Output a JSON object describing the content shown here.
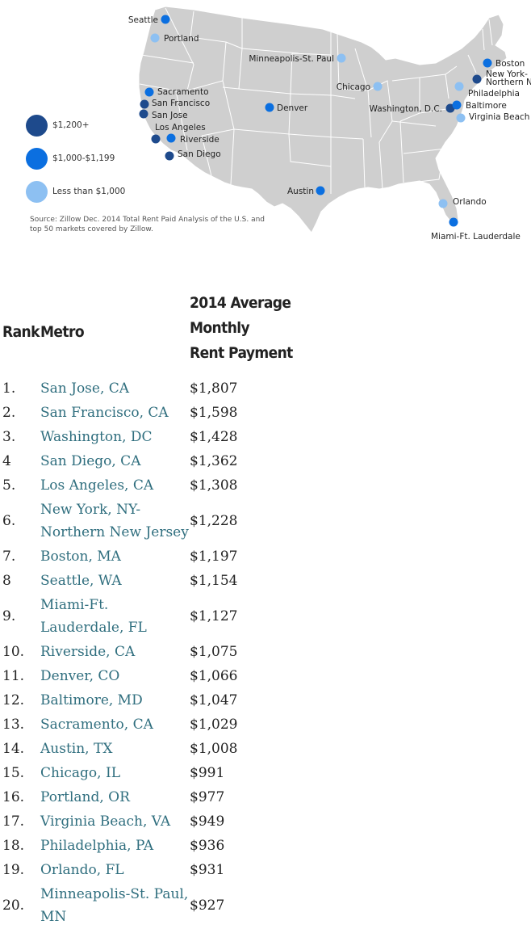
{
  "map": {
    "cities": [
      {
        "name": "Seattle",
        "tier": "mid"
      },
      {
        "name": "Portland",
        "tier": "low"
      },
      {
        "name": "Sacramento",
        "tier": "mid"
      },
      {
        "name": "San Francisco",
        "tier": "high"
      },
      {
        "name": "San Jose",
        "tier": "high"
      },
      {
        "name": "Los Angeles",
        "tier": "high"
      },
      {
        "name": "Riverside",
        "tier": "mid"
      },
      {
        "name": "San Diego",
        "tier": "high"
      },
      {
        "name": "Minneapolis-St. Paul",
        "tier": "low"
      },
      {
        "name": "Denver",
        "tier": "mid"
      },
      {
        "name": "Austin",
        "tier": "mid"
      },
      {
        "name": "Chicago",
        "tier": "low"
      },
      {
        "name": "Boston",
        "tier": "mid"
      },
      {
        "name": "New York-\nNorthern N",
        "tier": "high"
      },
      {
        "name": "Philadelphia",
        "tier": "low"
      },
      {
        "name": "Washington, D.C.",
        "tier": "high"
      },
      {
        "name": "Baltimore",
        "tier": "mid"
      },
      {
        "name": "Virginia Beach",
        "tier": "low"
      },
      {
        "name": "Orlando",
        "tier": "low"
      },
      {
        "name": "Miami-Ft. Lauderdale",
        "tier": "mid"
      }
    ],
    "colors": {
      "high": "#1e4a8c",
      "mid": "#0b6fe0",
      "low": "#8dc0f2",
      "land": "#cfcfcf",
      "border": "#ffffff"
    },
    "legend": [
      {
        "label": "$1,200+",
        "tier": "high"
      },
      {
        "label": "$1,000-$1,199",
        "tier": "mid"
      },
      {
        "label": "Less than $1,000",
        "tier": "low"
      }
    ],
    "source": "Source: Zillow Dec. 2014 Total Rent Paid Analysis of the U.S. and top 50 markets covered by Zillow."
  },
  "table": {
    "headers": {
      "rank": "Rank",
      "metro": "Metro",
      "payment_lines": [
        "2014 Average",
        "Monthly",
        "Rent Payment"
      ]
    },
    "rows": [
      {
        "rank": "1.",
        "metro": "San Jose, CA",
        "payment": "$1,807"
      },
      {
        "rank": "2.",
        "metro": "San Francisco, CA",
        "payment": "$1,598"
      },
      {
        "rank": "3.",
        "metro": "Washington, DC",
        "payment": "$1,428"
      },
      {
        "rank": "4",
        "metro": "San Diego, CA",
        "payment": "$1,362"
      },
      {
        "rank": "5.",
        "metro": "Los Angeles, CA",
        "payment": "$1,308"
      },
      {
        "rank": "6.",
        "metro": "New York, NY-\nNorthern New Jersey",
        "payment": "$1,228"
      },
      {
        "rank": "7.",
        "metro": "Boston, MA",
        "payment": "$1,197"
      },
      {
        "rank": "8",
        "metro": "Seattle, WA",
        "payment": "$1,154"
      },
      {
        "rank": "9.",
        "metro": "Miami-Ft.\nLauderdale, FL",
        "payment": "$1,127"
      },
      {
        "rank": "10.",
        "metro": "Riverside, CA",
        "payment": "$1,075"
      },
      {
        "rank": "11.",
        "metro": "Denver, CO",
        "payment": "$1,066"
      },
      {
        "rank": "12.",
        "metro": "Baltimore, MD",
        "payment": "$1,047"
      },
      {
        "rank": "13.",
        "metro": "Sacramento, CA",
        "payment": "$1,029"
      },
      {
        "rank": "14.",
        "metro": "Austin, TX",
        "payment": "$1,008"
      },
      {
        "rank": "15.",
        "metro": "Chicago, IL",
        "payment": "$991"
      },
      {
        "rank": "16.",
        "metro": "Portland, OR",
        "payment": "$977"
      },
      {
        "rank": "17.",
        "metro": "Virginia Beach, VA",
        "payment": "$949"
      },
      {
        "rank": "18.",
        "metro": "Philadelphia, PA",
        "payment": "$936"
      },
      {
        "rank": "19.",
        "metro": "Orlando, FL",
        "payment": "$931"
      },
      {
        "rank": "20.",
        "metro": "Minneapolis-St. Paul,\nMN",
        "payment": "$927"
      }
    ]
  }
}
